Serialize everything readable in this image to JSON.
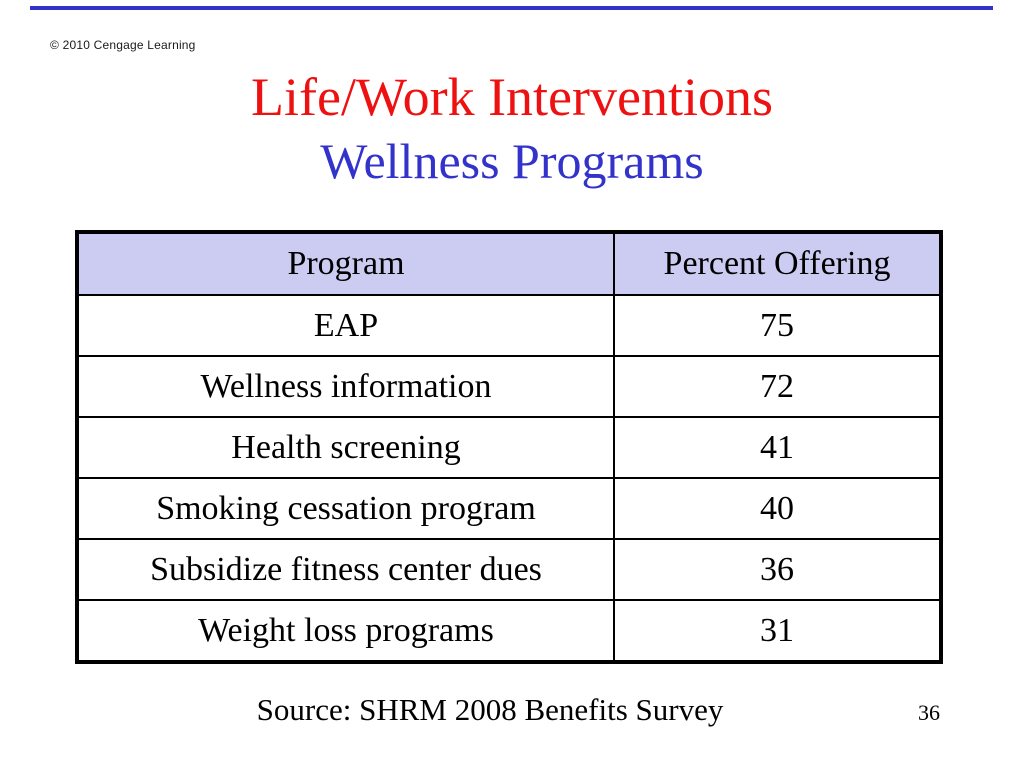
{
  "slide": {
    "copyright": "© 2010 Cengage Learning",
    "title": "Life/Work Interventions",
    "subtitle": "Wellness Programs",
    "source_note": "Source: SHRM 2008 Benefits Survey",
    "page_number": "36"
  },
  "table": {
    "columns": [
      "Program",
      "Percent Offering"
    ],
    "rows": [
      {
        "program": "EAP",
        "percent": "75"
      },
      {
        "program": "Wellness information",
        "percent": "72"
      },
      {
        "program": "Health screening",
        "percent": "41"
      },
      {
        "program": "Smoking cessation program",
        "percent": "40"
      },
      {
        "program": "Subsidize fitness center dues",
        "percent": "36"
      },
      {
        "program": "Weight loss programs",
        "percent": "31"
      }
    ]
  },
  "colors": {
    "title_red": "#ee1111",
    "subtitle_blue": "#3333cc",
    "accent_line_blue": "#3333cc",
    "table_header_bg": "#ccccf2",
    "table_border": "#000000"
  }
}
